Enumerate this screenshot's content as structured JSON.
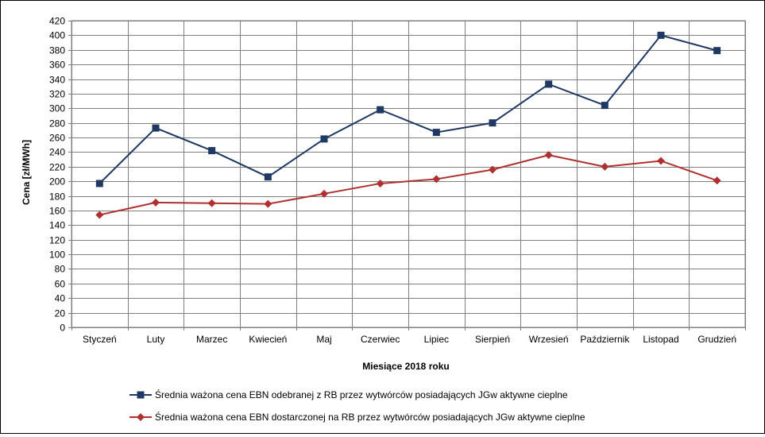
{
  "chart_data": {
    "type": "line",
    "xlabel": "Miesiące 2018  roku",
    "ylabel": "Cena [zł/MWh]",
    "ylim": [
      0,
      420
    ],
    "y_step": 20,
    "grid": true,
    "legend_position": "bottom",
    "categories": [
      "Styczeń",
      "Luty",
      "Marzec",
      "Kwiecień",
      "Maj",
      "Czerwiec",
      "Lipiec",
      "Sierpień",
      "Wrzesień",
      "Październik",
      "Listopad",
      "Grudzień"
    ],
    "series": [
      {
        "name": "Średnia ważona cena EBN odebranej z RB przez wytwórców posiadających JGw aktywne cieplne",
        "color": "#1f3864",
        "marker": "square",
        "values": [
          197,
          273,
          242,
          206,
          258,
          298,
          267,
          280,
          333,
          304,
          400,
          379
        ]
      },
      {
        "name": "Średnia ważona cena EBN dostarczonej na RB przez wytwórców posiadających JGw aktywne cieplne",
        "color": "#b03030",
        "marker": "diamond",
        "values": [
          154,
          171,
          170,
          169,
          183,
          197,
          203,
          216,
          236,
          220,
          228,
          201
        ]
      }
    ]
  }
}
